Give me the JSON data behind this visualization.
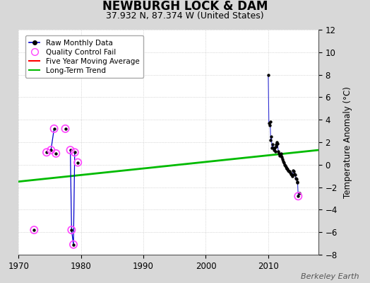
{
  "title": "NEWBURGH LOCK & DAM",
  "subtitle": "37.932 N, 87.374 W (United States)",
  "ylabel": "Temperature Anomaly (°C)",
  "watermark": "Berkeley Earth",
  "xlim": [
    1970,
    2018
  ],
  "ylim": [
    -8,
    12
  ],
  "yticks": [
    -8,
    -6,
    -4,
    -2,
    0,
    2,
    4,
    6,
    8,
    10,
    12
  ],
  "xticks": [
    1970,
    1980,
    1990,
    2000,
    2010
  ],
  "background_color": "#d8d8d8",
  "plot_bg_color": "#ffffff",
  "long_term_trend": {
    "x": [
      1970,
      2018
    ],
    "y": [
      -1.5,
      1.3
    ]
  },
  "segments_1970s": [
    {
      "x": [
        1972.5
      ],
      "y": [
        -5.8
      ]
    },
    {
      "x": [
        1974.5
      ],
      "y": [
        1.1
      ]
    },
    {
      "x": [
        1975.2,
        1975.7
      ],
      "y": [
        1.3,
        3.2
      ]
    },
    {
      "x": [
        1976.0
      ],
      "y": [
        1.0
      ]
    },
    {
      "x": [
        1977.5
      ],
      "y": [
        3.2
      ]
    },
    {
      "x": [
        1978.3,
        1978.5,
        1978.8,
        1979.0
      ],
      "y": [
        1.3,
        -5.8,
        -7.1,
        1.1
      ]
    },
    {
      "x": [
        1979.5
      ],
      "y": [
        0.2
      ]
    }
  ],
  "qc_fail_points_1970s": {
    "x": [
      1972.5,
      1974.5,
      1975.2,
      1975.7,
      1976.0,
      1977.5,
      1978.3,
      1978.5,
      1978.8,
      1979.0,
      1979.5
    ],
    "y": [
      -5.8,
      1.1,
      1.3,
      3.2,
      1.0,
      3.2,
      1.3,
      -5.8,
      -7.1,
      1.1,
      0.2
    ]
  },
  "data_2010s_x": [
    2010.0,
    2010.1,
    2010.2,
    2010.3,
    2010.4,
    2010.5,
    2010.6,
    2010.7,
    2010.8,
    2010.9,
    2011.0,
    2011.1,
    2011.2,
    2011.3,
    2011.4,
    2011.5,
    2011.6,
    2011.7,
    2011.8,
    2011.9,
    2012.0,
    2012.1,
    2012.2,
    2012.3,
    2012.4,
    2012.5,
    2012.6,
    2012.7,
    2012.8,
    2012.9,
    2013.0,
    2013.1,
    2013.2,
    2013.3,
    2013.4,
    2013.5,
    2013.6,
    2013.7,
    2013.8,
    2013.9,
    2014.0,
    2014.1,
    2014.2,
    2014.3,
    2014.4,
    2014.5,
    2014.6,
    2014.7,
    2014.8,
    2015.0
  ],
  "data_2010s_y": [
    8.0,
    3.7,
    3.5,
    3.8,
    2.2,
    2.5,
    1.5,
    1.8,
    1.5,
    1.3,
    1.5,
    1.2,
    1.8,
    1.6,
    2.0,
    1.9,
    1.2,
    1.0,
    0.8,
    0.9,
    1.0,
    0.8,
    0.7,
    0.5,
    0.3,
    0.2,
    0.0,
    -0.1,
    -0.2,
    -0.3,
    -0.3,
    -0.4,
    -0.5,
    -0.6,
    -0.6,
    -0.7,
    -0.8,
    -0.9,
    -1.0,
    -0.9,
    -0.5,
    -0.6,
    -0.8,
    -0.9,
    -1.2,
    -1.3,
    -1.5,
    -1.6,
    -2.8,
    -2.5
  ],
  "qc_fail_2010s": {
    "x": [
      2014.8
    ],
    "y": [
      -2.8
    ]
  },
  "line_color": "#0000cc",
  "marker_color": "#000000",
  "qc_color": "#ff44ff",
  "trend_color": "#00bb00",
  "ma_color": "#ff0000"
}
